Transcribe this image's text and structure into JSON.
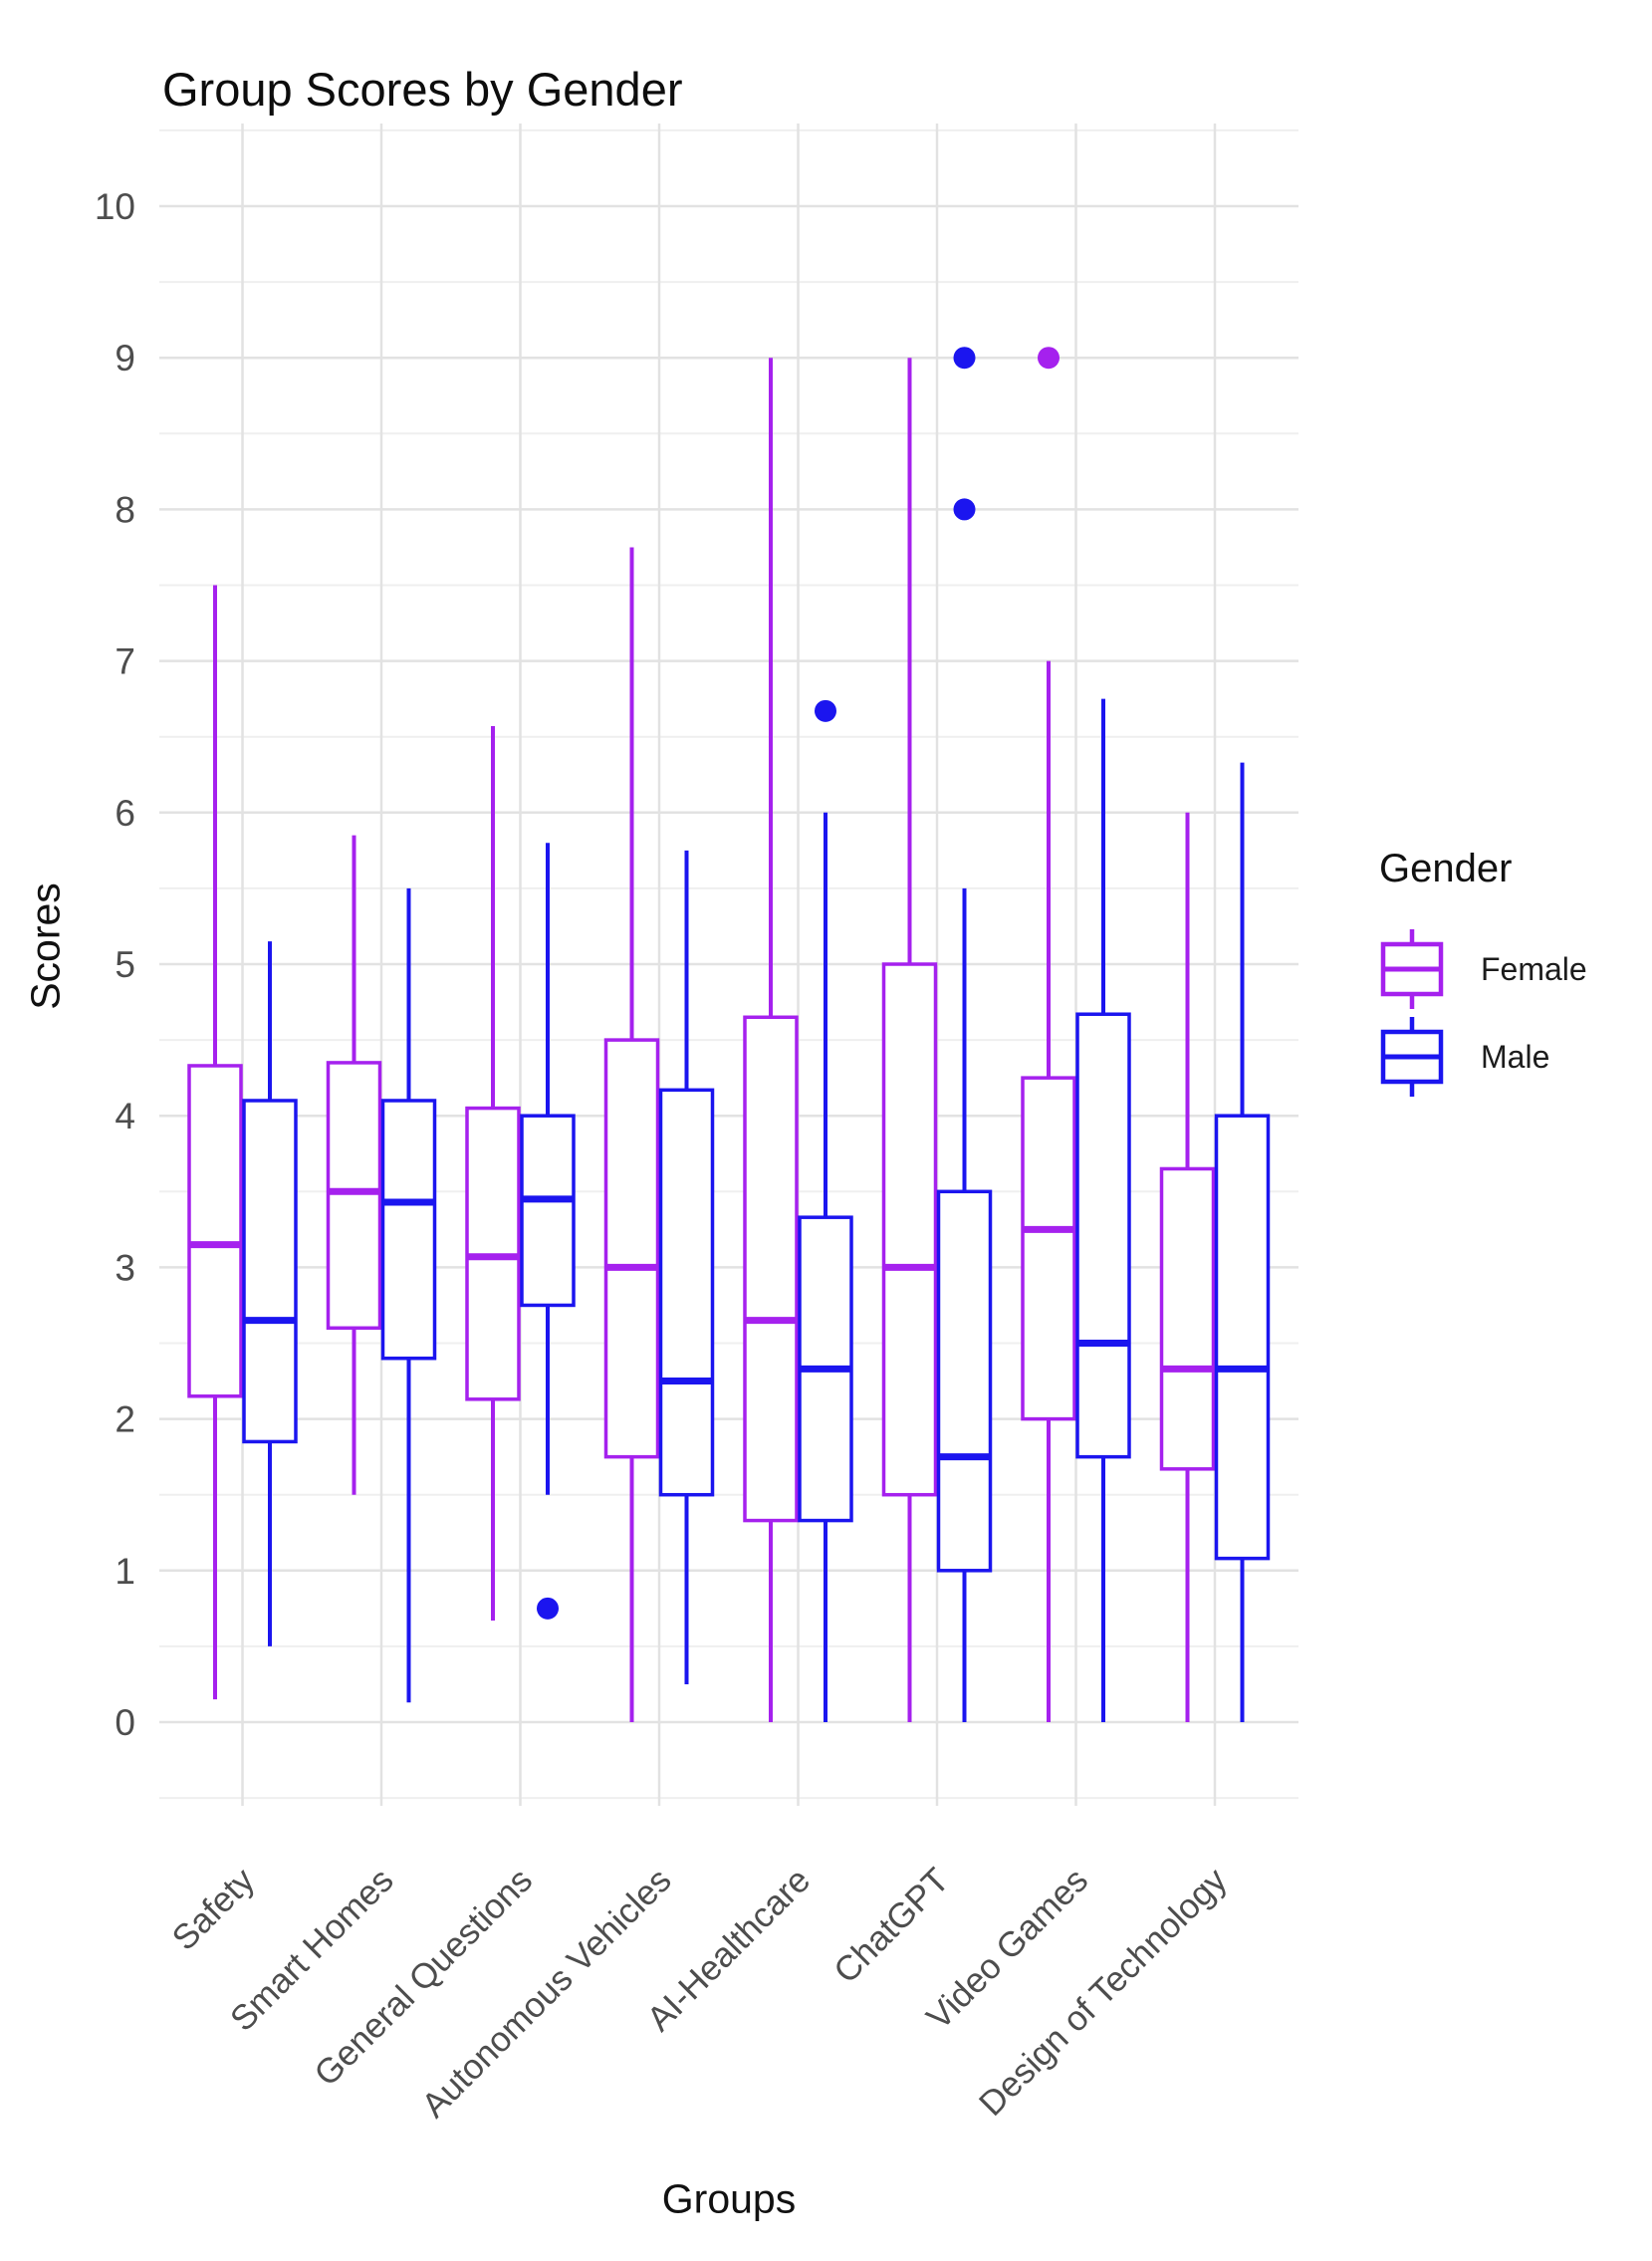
{
  "chart_data": {
    "type": "grouped_boxplot",
    "title": "Group Scores by Gender",
    "xlabel": "Groups",
    "ylabel": "Scores",
    "ylim": [
      0,
      10
    ],
    "yticks": [
      0,
      1,
      2,
      3,
      4,
      5,
      6,
      7,
      8,
      9,
      10
    ],
    "grid": "major and minor horizontal lines, vertical line per group",
    "legend": {
      "title": "Gender",
      "position": "right",
      "entries": [
        {
          "label": "Female",
          "color": "#A521EE"
        },
        {
          "label": "Male",
          "color": "#1B15EF"
        }
      ]
    },
    "categories": [
      "Safety",
      "Smart Homes",
      "General Questions",
      "Autonomous Vehicles",
      "AI-Healthcare",
      "ChatGPT",
      "Video Games",
      "Design of Technology"
    ],
    "series": [
      {
        "name": "Female",
        "color": "#A521EE",
        "boxes": [
          {
            "low": 0.15,
            "q1": 2.15,
            "median": 3.15,
            "q3": 4.33,
            "high": 7.5,
            "outliers": []
          },
          {
            "low": 1.5,
            "q1": 2.6,
            "median": 3.5,
            "q3": 4.35,
            "high": 5.85,
            "outliers": []
          },
          {
            "low": 0.67,
            "q1": 2.13,
            "median": 3.07,
            "q3": 4.05,
            "high": 6.57,
            "outliers": []
          },
          {
            "low": 0.0,
            "q1": 1.75,
            "median": 3.0,
            "q3": 4.5,
            "high": 7.75,
            "outliers": []
          },
          {
            "low": 0.0,
            "q1": 1.33,
            "median": 2.65,
            "q3": 4.65,
            "high": 9.0,
            "outliers": []
          },
          {
            "low": 0.0,
            "q1": 1.5,
            "median": 3.0,
            "q3": 5.0,
            "high": 9.0,
            "outliers": []
          },
          {
            "low": 0.0,
            "q1": 2.0,
            "median": 3.25,
            "q3": 4.25,
            "high": 7.0,
            "outliers": [
              9.0
            ]
          },
          {
            "low": 0.0,
            "q1": 1.67,
            "median": 2.33,
            "q3": 3.65,
            "high": 6.0,
            "outliers": []
          }
        ]
      },
      {
        "name": "Male",
        "color": "#1B15EF",
        "boxes": [
          {
            "low": 0.5,
            "q1": 1.85,
            "median": 2.65,
            "q3": 4.1,
            "high": 5.15,
            "outliers": []
          },
          {
            "low": 0.13,
            "q1": 2.4,
            "median": 3.43,
            "q3": 4.1,
            "high": 5.5,
            "outliers": []
          },
          {
            "low": 1.5,
            "q1": 2.75,
            "median": 3.45,
            "q3": 4.0,
            "high": 5.8,
            "outliers": [
              0.75
            ]
          },
          {
            "low": 0.25,
            "q1": 1.5,
            "median": 2.25,
            "q3": 4.17,
            "high": 5.75,
            "outliers": []
          },
          {
            "low": 0.0,
            "q1": 1.33,
            "median": 2.33,
            "q3": 3.33,
            "high": 6.0,
            "outliers": [
              6.67
            ]
          },
          {
            "low": 0.0,
            "q1": 1.0,
            "median": 1.75,
            "q3": 3.5,
            "high": 5.5,
            "outliers": [
              8.0,
              9.0
            ]
          },
          {
            "low": 0.0,
            "q1": 1.75,
            "median": 2.5,
            "q3": 4.67,
            "high": 6.75,
            "outliers": []
          },
          {
            "low": 0.0,
            "q1": 1.08,
            "median": 2.33,
            "q3": 4.0,
            "high": 6.33,
            "outliers": []
          }
        ]
      }
    ]
  }
}
